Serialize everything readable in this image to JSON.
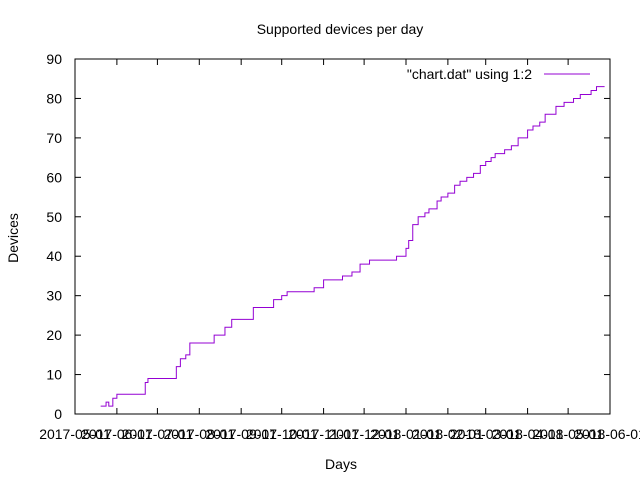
{
  "chart_data": {
    "type": "line",
    "title": "Supported devices per day",
    "xlabel": "Days",
    "ylabel": "Devices",
    "xlim": [
      "2017-05-01",
      "2018-06-01"
    ],
    "ylim": [
      0,
      90
    ],
    "x_tick_labels": [
      "2017-05-01",
      "2017-06-01",
      "2017-07-01",
      "2017-08-01",
      "2017-09-01",
      "2017-10-01",
      "2017-11-01",
      "2017-12-01",
      "2018-01-01",
      "2018-02-01",
      "2018-03-01",
      "2018-04-01",
      "2018-05-01",
      "2018-06-01"
    ],
    "y_ticks": [
      0,
      10,
      20,
      30,
      40,
      50,
      60,
      70,
      80,
      90
    ],
    "grid": false,
    "legend_position": "top-right",
    "colors": {
      "series": "#9400d3",
      "axes": "#000000"
    },
    "series": [
      {
        "name": "\"chart.dat\" using 1:2",
        "x": [
          "2017-05-20",
          "2017-05-24",
          "2017-05-26",
          "2017-05-29",
          "2017-06-01",
          "2017-06-10",
          "2017-06-22",
          "2017-06-24",
          "2017-07-05",
          "2017-07-15",
          "2017-07-18",
          "2017-07-22",
          "2017-07-25",
          "2017-08-01",
          "2017-08-12",
          "2017-08-20",
          "2017-08-25",
          "2017-09-01",
          "2017-09-10",
          "2017-09-25",
          "2017-10-01",
          "2017-10-05",
          "2017-10-15",
          "2017-10-25",
          "2017-11-01",
          "2017-11-10",
          "2017-11-15",
          "2017-11-22",
          "2017-11-28",
          "2017-12-05",
          "2017-12-10",
          "2017-12-25",
          "2018-01-01",
          "2018-01-03",
          "2018-01-06",
          "2018-01-10",
          "2018-01-15",
          "2018-01-18",
          "2018-01-24",
          "2018-01-27",
          "2018-02-01",
          "2018-02-06",
          "2018-02-10",
          "2018-02-15",
          "2018-02-20",
          "2018-02-25",
          "2018-03-01",
          "2018-03-05",
          "2018-03-08",
          "2018-03-12",
          "2018-03-15",
          "2018-03-20",
          "2018-03-25",
          "2018-04-01",
          "2018-04-05",
          "2018-04-10",
          "2018-04-14",
          "2018-04-18",
          "2018-04-22",
          "2018-04-28",
          "2018-05-01",
          "2018-05-05",
          "2018-05-10",
          "2018-05-13",
          "2018-05-18",
          "2018-05-22"
        ],
        "y": [
          2,
          3,
          2,
          4,
          5,
          5,
          8,
          9,
          9,
          12,
          14,
          15,
          18,
          18,
          20,
          22,
          24,
          24,
          27,
          29,
          30,
          31,
          31,
          32,
          34,
          34,
          35,
          36,
          38,
          39,
          39,
          40,
          42,
          44,
          48,
          50,
          51,
          52,
          54,
          55,
          56,
          58,
          59,
          60,
          61,
          63,
          64,
          65,
          66,
          66,
          67,
          68,
          70,
          72,
          73,
          74,
          76,
          76,
          78,
          79,
          79,
          80,
          81,
          81,
          82,
          83
        ]
      }
    ]
  }
}
